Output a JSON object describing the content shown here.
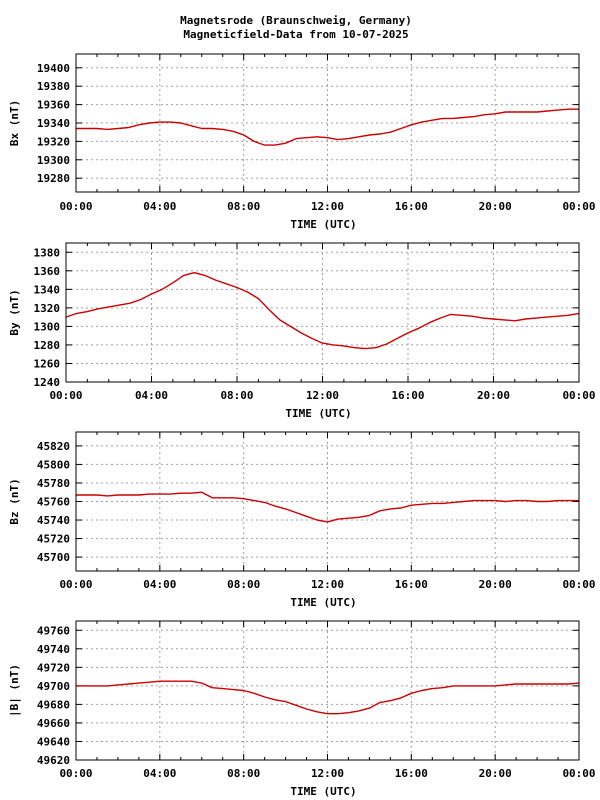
{
  "title_line1": "Magnetsrode (Braunschweig, Germany)",
  "title_line2": "Magneticfield-Data from 10-07-2025",
  "colors": {
    "trace": "#cc0000",
    "grid": "#a0a0a0",
    "frame": "#000000",
    "background": "#ffffff"
  },
  "chart_data": [
    {
      "type": "line",
      "title": "",
      "xlabel": "TIME (UTC)",
      "ylabel": "Bx (nT)",
      "xlim": [
        0,
        24
      ],
      "ylim": [
        19265,
        19415
      ],
      "yticks": [
        19280,
        19300,
        19320,
        19340,
        19360,
        19380,
        19400
      ],
      "xtick_labels": [
        "00:00",
        "04:00",
        "08:00",
        "12:00",
        "16:00",
        "20:00",
        "00:00"
      ],
      "grid": true,
      "series": [
        {
          "x": [
            0,
            0.5,
            1,
            1.5,
            2,
            2.5,
            3,
            3.5,
            4,
            4.5,
            5,
            5.5,
            6,
            6.5,
            7,
            7.5,
            8,
            8.5,
            9,
            9.5,
            10,
            10.5,
            11,
            11.5,
            12,
            12.5,
            13,
            13.5,
            14,
            14.5,
            15,
            15.5,
            16,
            16.5,
            17,
            17.5,
            18,
            18.5,
            19,
            19.5,
            20,
            20.5,
            21,
            21.5,
            22,
            22.5,
            23,
            23.5,
            24
          ],
          "y": [
            19334,
            19334,
            19334,
            19333,
            19334,
            19335,
            19338,
            19340,
            19341,
            19341,
            19340,
            19337,
            19334,
            19334,
            19333,
            19331,
            19327,
            19320,
            19316,
            19316,
            19318,
            19323,
            19324,
            19325,
            19324,
            19322,
            19323,
            19325,
            19327,
            19328,
            19330,
            19334,
            19338,
            19341,
            19343,
            19345,
            19345,
            19346,
            19347,
            19349,
            19350,
            19352,
            19352,
            19352,
            19352,
            19353,
            19354,
            19355,
            19355
          ]
        }
      ]
    },
    {
      "type": "line",
      "title": "",
      "xlabel": "TIME (UTC)",
      "ylabel": "By (nT)",
      "xlim": [
        0,
        24
      ],
      "ylim": [
        1240,
        1390
      ],
      "yticks": [
        1240,
        1260,
        1280,
        1300,
        1320,
        1340,
        1360,
        1380
      ],
      "xtick_labels": [
        "00:00",
        "04:00",
        "08:00",
        "12:00",
        "16:00",
        "20:00",
        "00:00"
      ],
      "grid": true,
      "series": [
        {
          "x": [
            0,
            0.5,
            1,
            1.5,
            2,
            2.5,
            3,
            3.5,
            4,
            4.5,
            5,
            5.5,
            6,
            6.5,
            7,
            7.5,
            8,
            8.5,
            9,
            9.5,
            10,
            10.5,
            11,
            11.5,
            12,
            12.5,
            13,
            13.5,
            14,
            14.5,
            15,
            15.5,
            16,
            16.5,
            17,
            17.5,
            18,
            18.5,
            19,
            19.5,
            20,
            20.5,
            21,
            21.5,
            22,
            22.5,
            23,
            23.5,
            24
          ],
          "y": [
            1310,
            1314,
            1316,
            1319,
            1321,
            1323,
            1325,
            1329,
            1335,
            1340,
            1347,
            1355,
            1358,
            1355,
            1350,
            1346,
            1342,
            1337,
            1330,
            1318,
            1307,
            1300,
            1293,
            1287,
            1282,
            1280,
            1279,
            1277,
            1276,
            1277,
            1281,
            1287,
            1293,
            1298,
            1304,
            1309,
            1313,
            1312,
            1311,
            1309,
            1308,
            1307,
            1306,
            1308,
            1309,
            1310,
            1311,
            1312,
            1314
          ]
        }
      ]
    },
    {
      "type": "line",
      "title": "",
      "xlabel": "TIME (UTC)",
      "ylabel": "Bz (nT)",
      "xlim": [
        0,
        24
      ],
      "ylim": [
        45685,
        45835
      ],
      "yticks": [
        45700,
        45720,
        45740,
        45760,
        45780,
        45800,
        45820
      ],
      "xtick_labels": [
        "00:00",
        "04:00",
        "08:00",
        "12:00",
        "16:00",
        "20:00",
        "00:00"
      ],
      "grid": true,
      "series": [
        {
          "x": [
            0,
            0.5,
            1,
            1.5,
            2,
            2.5,
            3,
            3.5,
            4,
            4.5,
            5,
            5.5,
            6,
            6.5,
            7,
            7.5,
            8,
            8.5,
            9,
            9.5,
            10,
            10.5,
            11,
            11.5,
            12,
            12.5,
            13,
            13.5,
            14,
            14.5,
            15,
            15.5,
            16,
            16.5,
            17,
            17.5,
            18,
            18.5,
            19,
            19.5,
            20,
            20.5,
            21,
            21.5,
            22,
            22.5,
            23,
            23.5,
            24
          ],
          "y": [
            45767,
            45767,
            45767,
            45766,
            45767,
            45767,
            45767,
            45768,
            45768,
            45768,
            45769,
            45769,
            45770,
            45764,
            45764,
            45764,
            45763,
            45761,
            45759,
            45755,
            45752,
            45748,
            45744,
            45740,
            45738,
            45741,
            45742,
            45743,
            45745,
            45750,
            45752,
            45753,
            45756,
            45757,
            45758,
            45758,
            45759,
            45760,
            45761,
            45761,
            45761,
            45760,
            45761,
            45761,
            45760,
            45760,
            45761,
            45761,
            45761
          ]
        }
      ]
    },
    {
      "type": "line",
      "title": "",
      "xlabel": "TIME (UTC)",
      "ylabel": "|B| (nT)",
      "xlim": [
        0,
        24
      ],
      "ylim": [
        49620,
        49770
      ],
      "yticks": [
        49620,
        49640,
        49660,
        49680,
        49700,
        49720,
        49740,
        49760
      ],
      "xtick_labels": [
        "00:00",
        "04:00",
        "08:00",
        "12:00",
        "16:00",
        "20:00",
        "00:00"
      ],
      "grid": true,
      "series": [
        {
          "x": [
            0,
            0.5,
            1,
            1.5,
            2,
            2.5,
            3,
            3.5,
            4,
            4.5,
            5,
            5.5,
            6,
            6.5,
            7,
            7.5,
            8,
            8.5,
            9,
            9.5,
            10,
            10.5,
            11,
            11.5,
            12,
            12.5,
            13,
            13.5,
            14,
            14.5,
            15,
            15.5,
            16,
            16.5,
            17,
            17.5,
            18,
            18.5,
            19,
            19.5,
            20,
            20.5,
            21,
            21.5,
            22,
            22.5,
            23,
            23.5,
            24
          ],
          "y": [
            49700,
            49700,
            49700,
            49700,
            49701,
            49702,
            49703,
            49704,
            49705,
            49705,
            49705,
            49705,
            49703,
            49698,
            49697,
            49696,
            49695,
            49692,
            49688,
            49685,
            49683,
            49679,
            49675,
            49672,
            49670,
            49670,
            49671,
            49673,
            49676,
            49682,
            49684,
            49687,
            49692,
            49695,
            49697,
            49698,
            49700,
            49700,
            49700,
            49700,
            49700,
            49701,
            49702,
            49702,
            49702,
            49702,
            49702,
            49702,
            49703
          ]
        }
      ]
    }
  ]
}
